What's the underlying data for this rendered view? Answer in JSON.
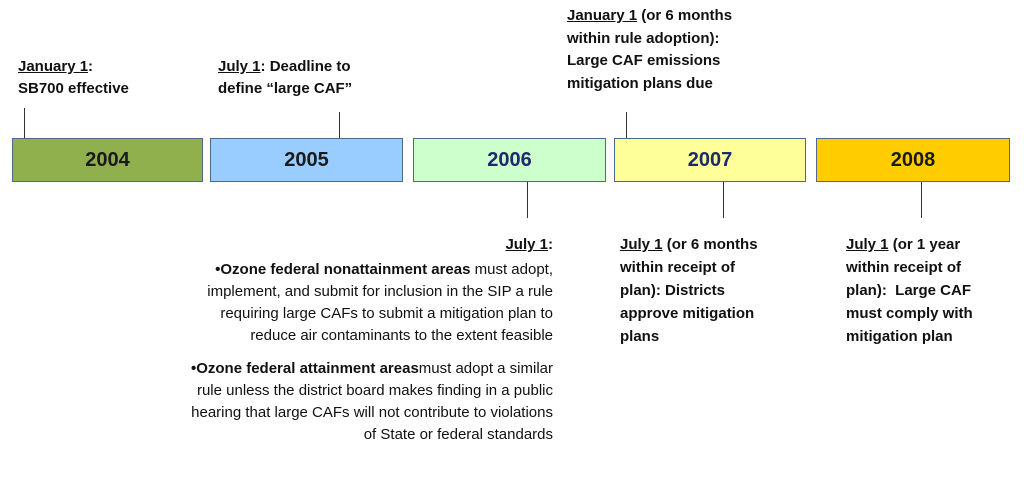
{
  "years": [
    {
      "label": "2004",
      "color": "#8fb04c",
      "text_color": "#1a1a1a"
    },
    {
      "label": "2005",
      "color": "#99ccff",
      "text_color": "#1a1a1a"
    },
    {
      "label": "2006",
      "color": "#ccffcc",
      "text_color": "#1f2a6b"
    },
    {
      "label": "2007",
      "color": "#ffff99",
      "text_color": "#1f2a6b"
    },
    {
      "label": "2008",
      "color": "#ffcc00",
      "text_color": "#1a1a1a"
    }
  ],
  "top_notes": [
    {
      "lines": [
        [
          "January 1",
          ":"
        ],
        [
          "SB700 effective"
        ]
      ]
    },
    {
      "lines": [
        [
          "July 1",
          ": Deadline to"
        ],
        [
          "define “large CAF”"
        ]
      ]
    },
    {
      "lines": [
        [
          "January 1",
          " (or 6 months"
        ],
        [
          "within rule adoption):"
        ],
        [
          "Large CAF emissions"
        ],
        [
          "mitigation plans due"
        ]
      ]
    }
  ],
  "bottom_notes": [
    {
      "lines": [
        [
          "July 1",
          ":"
        ]
      ]
    },
    {
      "lines": [
        [
          "July 1",
          " (or 6 months"
        ],
        [
          "within receipt of"
        ],
        [
          "plan): Districts"
        ],
        [
          "approve mitigation"
        ],
        [
          "plans"
        ]
      ]
    },
    {
      "lines": [
        [
          "July 1",
          " (or 1 year"
        ],
        [
          "within receipt of"
        ],
        [
          "plan):  Large CAF"
        ],
        [
          "must comply with"
        ],
        [
          "mitigation plan"
        ]
      ]
    }
  ],
  "bullets": [
    {
      "lines": [
        [
          "•Ozone federal nonattainment areas",
          " must adopt,"
        ],
        [
          "implement, and submit for inclusion in the SIP a rule"
        ],
        [
          "requiring large CAFs to submit a mitigation plan to"
        ],
        [
          "reduce air contaminants to the extent feasible"
        ]
      ]
    },
    {
      "lines": [
        [
          "•Ozone federal attainment areas",
          "must adopt a similar"
        ],
        [
          "rule unless the district board makes finding in a public"
        ],
        [
          "hearing that large CAFs will not contribute to violations"
        ],
        [
          "of State or federal standards"
        ]
      ]
    }
  ]
}
